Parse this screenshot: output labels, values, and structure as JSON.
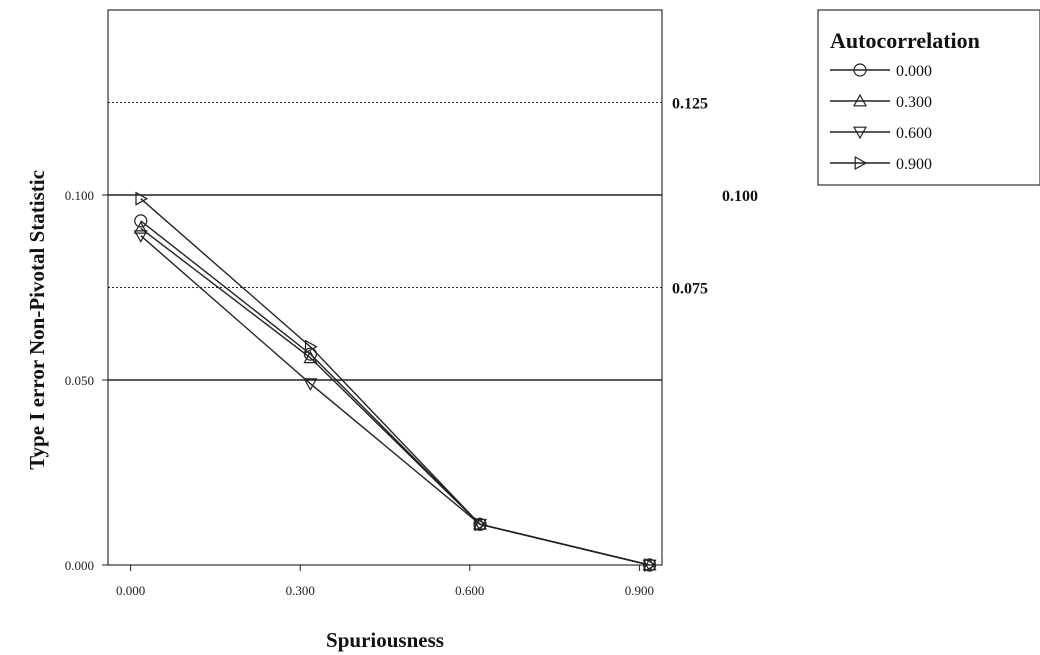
{
  "chart_data": {
    "type": "line",
    "xlabel": "Spuriousness",
    "ylabel": "Type I error Non-Pivotal Statistic",
    "x_ticks": [
      "0.000",
      "0.300",
      "0.600",
      "0.900"
    ],
    "y_ticks": [
      "0.000",
      "0.050",
      "0.100"
    ],
    "xlim": [
      -0.04,
      0.94
    ],
    "ylim": [
      0,
      0.15
    ],
    "x": [
      0.0,
      0.3,
      0.6,
      0.9
    ],
    "legend": {
      "title": "Autocorrelation",
      "position": "top-right"
    },
    "series": [
      {
        "name": "0.000",
        "marker": "circle",
        "values": [
          0.093,
          0.057,
          0.011,
          0.0
        ]
      },
      {
        "name": "0.300",
        "marker": "triangle-up",
        "values": [
          0.091,
          0.056,
          0.011,
          0.0
        ]
      },
      {
        "name": "0.600",
        "marker": "triangle-down",
        "values": [
          0.089,
          0.049,
          0.011,
          0.0
        ]
      },
      {
        "name": "0.900",
        "marker": "triangle-right",
        "values": [
          0.099,
          0.059,
          0.011,
          0.0
        ]
      }
    ],
    "reference_lines": [
      {
        "y": 0.125,
        "label": "0.125",
        "style": "dotted"
      },
      {
        "y": 0.1,
        "label": "0.100",
        "style": "solid"
      },
      {
        "y": 0.075,
        "label": "0.075",
        "style": "dotted"
      },
      {
        "y": 0.05,
        "label": "",
        "style": "solid"
      }
    ],
    "grid": false,
    "line_color": "#222222"
  }
}
